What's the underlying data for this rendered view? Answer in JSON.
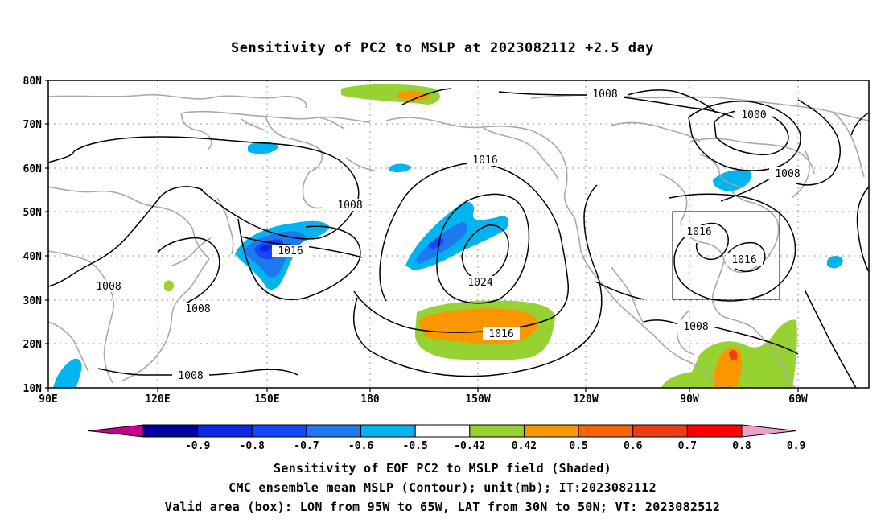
{
  "title": "Sensitivity of PC2 to MSLP at 2023082112 +2.5 day",
  "lat_labels": [
    "80N",
    "70N",
    "60N",
    "50N",
    "40N",
    "30N",
    "20N",
    "10N"
  ],
  "lon_labels": [
    "90E",
    "120E",
    "150E",
    "180",
    "150W",
    "120W",
    "90W",
    "60W"
  ],
  "contour_labels": [
    "1008",
    "1000",
    "1008",
    "1016",
    "1008",
    "1016",
    "1024",
    "1016",
    "1016",
    "1016",
    "1008",
    "1008",
    "1008",
    "1008"
  ],
  "colorbar": {
    "tick_labels": [
      "-0.9",
      "-0.8",
      "-0.7",
      "-0.6",
      "-0.5",
      "-0.42",
      "0.42",
      "0.5",
      "0.6",
      "0.7",
      "0.8",
      "0.9"
    ],
    "colors": [
      "#c8008c",
      "#0000a0",
      "#0a28e6",
      "#1446fa",
      "#1e78f0",
      "#00b4f0",
      "#ffffff",
      "#96d232",
      "#fa9600",
      "#fa6400",
      "#f03c14",
      "#ff0000",
      "#f0a0c8"
    ]
  },
  "valid_box": {
    "lon_west": "95W",
    "lon_east": "65W",
    "lat_south": "30N",
    "lat_north": "50N"
  },
  "captions": {
    "line1": "Sensitivity of EOF PC2 to MSLP field (Shaded)",
    "line2": "CMC ensemble mean MSLP (Contour); unit(mb); IT:2023082112",
    "line3": "Valid area (box): LON from 95W to 65W, LAT from 30N to 50N; VT: 2023082512"
  }
}
